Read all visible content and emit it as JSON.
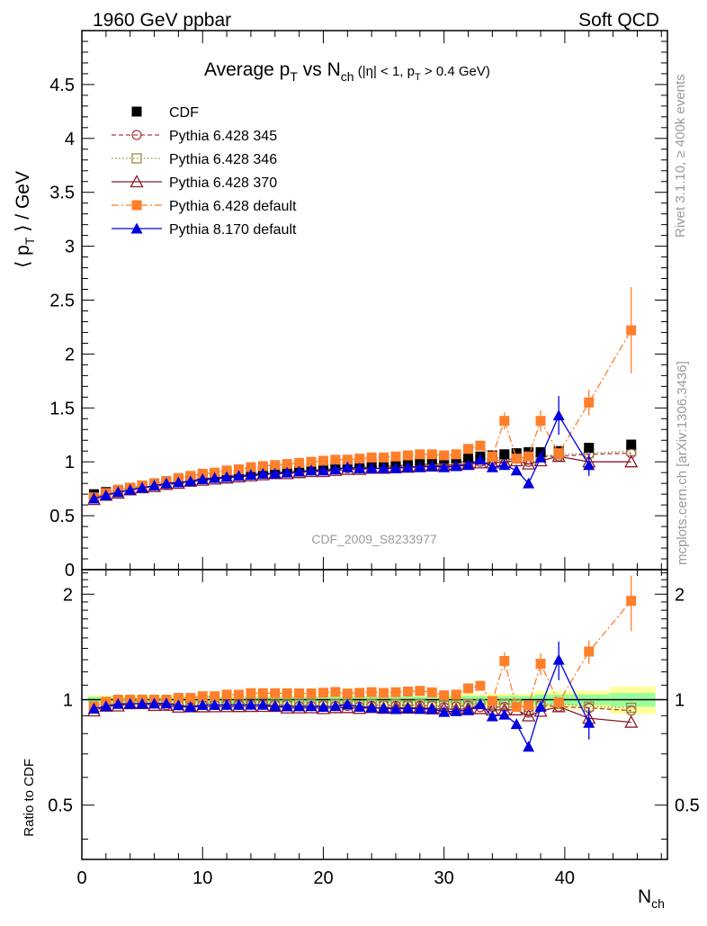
{
  "header": {
    "left": "1960 GeV ppbar",
    "right": "Soft QCD"
  },
  "side": {
    "rivet": "Rivet 3.1.10, ≥ 400k events",
    "mcplots": "mcplots.cern.ch [arXiv:1306.3436]"
  },
  "main_plot": {
    "title_main": "Average p",
    "title_sub_T": "T",
    "title_vs": " vs N",
    "title_sub_ch": "ch",
    "title_cuts_a": " (|η| < 1, p",
    "title_cuts_T": "T",
    "title_cuts_b": " > 0.4 GeV)",
    "ylabel_a": "⟨ p",
    "ylabel_T": "T",
    "ylabel_b": " ⟩ / GeV",
    "analysis_id": "CDF_2009_S8233977"
  },
  "ratio_plot": {
    "ylabel": "Ratio to CDF"
  },
  "xlabel": "N",
  "xlabel_sub": "ch",
  "chart_data": {
    "type": "scatter",
    "x": [
      1,
      2,
      3,
      4,
      5,
      6,
      7,
      8,
      9,
      10,
      11,
      12,
      13,
      14,
      15,
      16,
      17,
      18,
      19,
      20,
      21,
      22,
      23,
      24,
      25,
      26,
      27,
      28,
      29,
      30,
      31,
      32,
      33,
      34,
      35,
      36,
      37,
      38,
      39.5,
      42,
      45.5
    ],
    "xlim": [
      0,
      48.5
    ],
    "ylim": [
      0,
      5
    ],
    "ratio_ylim": [
      0.35,
      2.35
    ],
    "ratio_scale": "log",
    "yticks": [
      0,
      0.5,
      1,
      1.5,
      2,
      2.5,
      3,
      3.5,
      4,
      4.5
    ],
    "ytick_labels": [
      "0",
      "0.5",
      "1",
      "1.5",
      "2",
      "2.5",
      "3",
      "3.5",
      "4",
      "4.5"
    ],
    "xticks": [
      0,
      10,
      20,
      30,
      40
    ],
    "xtick_labels": [
      "0",
      "10",
      "20",
      "30",
      "40"
    ],
    "ratio_yticks": [
      0.5,
      1,
      2
    ],
    "ratio_ytick_labels": [
      "0.5",
      "1",
      "2"
    ],
    "legend_position": "top-left",
    "series": [
      {
        "name": "CDF",
        "color": "#000000",
        "marker": "square-filled",
        "line": "none",
        "values": [
          0.7,
          0.72,
          0.74,
          0.76,
          0.78,
          0.8,
          0.82,
          0.84,
          0.86,
          0.87,
          0.88,
          0.89,
          0.9,
          0.91,
          0.92,
          0.93,
          0.94,
          0.95,
          0.96,
          0.965,
          0.97,
          0.98,
          0.985,
          0.99,
          0.995,
          1.0,
          1.005,
          1.01,
          1.02,
          1.03,
          1.035,
          1.04,
          1.05,
          1.06,
          1.07,
          1.08,
          1.09,
          1.09,
          1.1,
          1.13,
          1.16
        ]
      },
      {
        "name": "Pythia 6.428 345",
        "color": "#b03a48",
        "marker": "circle-open",
        "line": "dashed",
        "values": [
          0.66,
          0.69,
          0.72,
          0.74,
          0.76,
          0.78,
          0.79,
          0.81,
          0.82,
          0.84,
          0.85,
          0.86,
          0.87,
          0.88,
          0.89,
          0.9,
          0.91,
          0.91,
          0.92,
          0.93,
          0.93,
          0.94,
          0.94,
          0.95,
          0.96,
          0.96,
          0.97,
          0.97,
          0.98,
          0.98,
          0.99,
          1.0,
          1.0,
          1.01,
          1.02,
          1.03,
          1.0,
          1.05,
          1.05,
          1.07,
          1.08
        ]
      },
      {
        "name": "Pythia 6.428 346",
        "color": "#9a8a40",
        "marker": "square-open",
        "line": "dotted",
        "values": [
          0.66,
          0.7,
          0.72,
          0.75,
          0.77,
          0.78,
          0.8,
          0.82,
          0.83,
          0.85,
          0.86,
          0.87,
          0.88,
          0.89,
          0.9,
          0.9,
          0.91,
          0.92,
          0.93,
          0.93,
          0.94,
          0.95,
          0.95,
          0.96,
          0.96,
          0.97,
          0.97,
          0.98,
          0.98,
          0.99,
          1.0,
          1.01,
          1.02,
          1.03,
          1.04,
          1.05,
          1.02,
          1.05,
          1.07,
          1.08,
          1.1
        ]
      },
      {
        "name": "Pythia 6.428 370",
        "color": "#8b1a2b",
        "marker": "triangle-open",
        "line": "solid",
        "values": [
          0.65,
          0.69,
          0.71,
          0.74,
          0.76,
          0.77,
          0.79,
          0.8,
          0.82,
          0.83,
          0.84,
          0.85,
          0.86,
          0.87,
          0.88,
          0.89,
          0.89,
          0.9,
          0.91,
          0.91,
          0.92,
          0.93,
          0.93,
          0.94,
          0.94,
          0.95,
          0.95,
          0.96,
          0.96,
          0.97,
          0.97,
          0.98,
          0.99,
          0.99,
          1.0,
          1.01,
          0.98,
          1.01,
          1.05,
          1.0,
          1.0
        ]
      },
      {
        "name": "Pythia 6.428 default",
        "color": "#ff7f2a",
        "marker": "square-filled",
        "line": "dashdot",
        "values": [
          0.67,
          0.71,
          0.74,
          0.76,
          0.78,
          0.8,
          0.82,
          0.85,
          0.87,
          0.89,
          0.9,
          0.92,
          0.93,
          0.95,
          0.96,
          0.97,
          0.98,
          0.99,
          1.0,
          1.01,
          1.02,
          1.02,
          1.03,
          1.04,
          1.04,
          1.05,
          1.06,
          1.07,
          1.07,
          1.06,
          1.07,
          1.12,
          1.15,
          1.05,
          1.38,
          1.03,
          1.05,
          1.38,
          1.08,
          1.55,
          2.22
        ],
        "errors": [
          0,
          0,
          0,
          0,
          0,
          0,
          0,
          0,
          0,
          0,
          0,
          0,
          0,
          0,
          0,
          0,
          0,
          0,
          0,
          0,
          0,
          0,
          0,
          0,
          0,
          0,
          0,
          0,
          0,
          0,
          0,
          0,
          0,
          0,
          0.08,
          0,
          0,
          0.1,
          0,
          0.12,
          0.4
        ]
      },
      {
        "name": "Pythia 8.170 default",
        "color": "#0000e0",
        "marker": "triangle-filled",
        "line": "solid",
        "values": [
          0.66,
          0.69,
          0.72,
          0.74,
          0.76,
          0.78,
          0.8,
          0.81,
          0.82,
          0.84,
          0.85,
          0.86,
          0.87,
          0.88,
          0.89,
          0.89,
          0.9,
          0.91,
          0.92,
          0.92,
          0.93,
          0.95,
          0.94,
          0.94,
          0.94,
          0.94,
          0.95,
          0.95,
          0.96,
          0.95,
          0.96,
          0.97,
          1.02,
          0.95,
          0.97,
          0.92,
          0.8,
          1.04,
          1.43,
          0.97,
          null
        ],
        "errors": [
          0,
          0,
          0,
          0,
          0,
          0,
          0,
          0,
          0,
          0,
          0,
          0,
          0,
          0,
          0,
          0,
          0,
          0,
          0,
          0,
          0,
          0,
          0,
          0,
          0,
          0,
          0,
          0,
          0,
          0,
          0,
          0,
          0,
          0,
          0,
          0,
          0,
          0,
          0.18,
          0.1,
          0
        ]
      }
    ]
  }
}
